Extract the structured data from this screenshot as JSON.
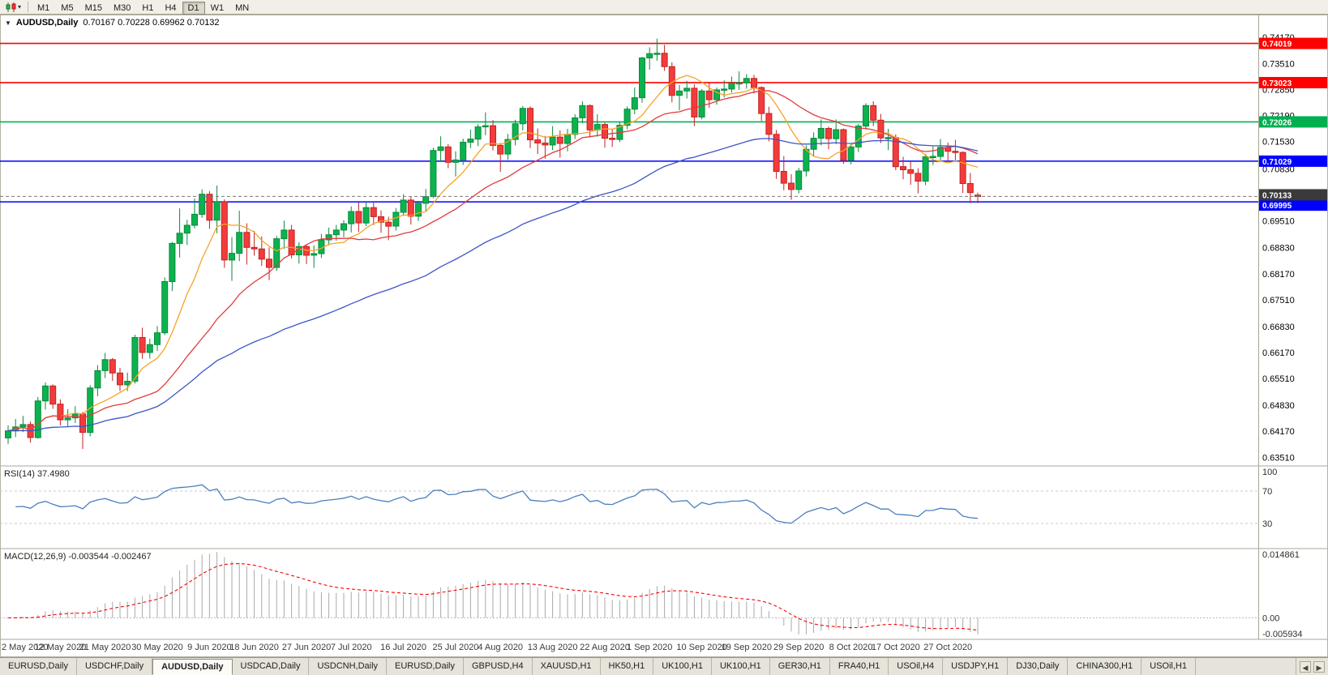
{
  "toolbar": {
    "timeframes": [
      "M1",
      "M5",
      "M15",
      "M30",
      "H1",
      "H4",
      "D1",
      "W1",
      "MN"
    ],
    "active_timeframe": "D1",
    "dropdown_icon": "▾"
  },
  "chart": {
    "collapse_icon": "▼",
    "title": "AUDUSD,Daily",
    "ohlc_text": "0.70167 0.70228 0.69962 0.70132"
  },
  "indicators": {
    "rsi": {
      "label": "RSI(14) 37.4980"
    },
    "macd": {
      "label": "MACD(12,26,9) -0.003544 -0.002467"
    }
  },
  "tabs": {
    "scroll_left": "◀",
    "scroll_right": "▶",
    "items": [
      {
        "label": "EURUSD,Daily",
        "active": false
      },
      {
        "label": "USDCHF,Daily",
        "active": false
      },
      {
        "label": "AUDUSD,Daily",
        "active": true
      },
      {
        "label": "USDCAD,Daily",
        "active": false
      },
      {
        "label": "USDCNH,Daily",
        "active": false
      },
      {
        "label": "EURUSD,Daily",
        "active": false
      },
      {
        "label": "GBPUSD,H4",
        "active": false
      },
      {
        "label": "XAUUSD,H1",
        "active": false
      },
      {
        "label": "HK50,H1",
        "active": false
      },
      {
        "label": "UK100,H1",
        "active": false
      },
      {
        "label": "UK100,H1",
        "active": false
      },
      {
        "label": "GER30,H1",
        "active": false
      },
      {
        "label": "FRA40,H1",
        "active": false
      },
      {
        "label": "USOil,H4",
        "active": false
      },
      {
        "label": "USDJPY,H1",
        "active": false
      },
      {
        "label": "DJ30,Daily",
        "active": false
      },
      {
        "label": "CHINA300,H1",
        "active": false
      },
      {
        "label": "USOil,H1",
        "active": false
      }
    ]
  },
  "chart_data": {
    "type": "candlestick",
    "symbol": "AUDUSD",
    "timeframe": "Daily",
    "current_bar": {
      "open": 0.70167,
      "high": 0.70228,
      "low": 0.69962,
      "close": 0.70132
    },
    "y_axis": {
      "range": [
        0.6331,
        0.7471
      ],
      "ticks": [
        "0.74170",
        "0.73510",
        "0.72850",
        "0.72190",
        "0.71530",
        "0.70830",
        "0.70170",
        "0.69510",
        "0.68830",
        "0.68170",
        "0.67510",
        "0.66830",
        "0.66170",
        "0.65510",
        "0.64830",
        "0.64170",
        "0.63510"
      ]
    },
    "x_axis": {
      "labels": [
        "2 May 2020",
        "12 May 2020",
        "21 May 2020",
        "30 May 2020",
        "9 Jun 2020",
        "18 Jun 2020",
        "27 Jun 2020",
        "7 Jul 2020",
        "16 Jul 2020",
        "25 Jul 2020",
        "4 Aug 2020",
        "13 Aug 2020",
        "22 Aug 2020",
        "1 Sep 2020",
        "10 Sep 2020",
        "19 Sep 2020",
        "29 Sep 2020",
        "8 Oct 2020",
        "17 Oct 2020",
        "27 Oct 2020"
      ]
    },
    "up_color": "#0CB24E",
    "up_border": "#098A3C",
    "down_color": "#F23C3C",
    "down_border": "#C32222",
    "moving_averages": [
      {
        "type": "sma",
        "period": 8,
        "color": "#F7A325"
      },
      {
        "type": "sma",
        "period": 21,
        "color": "#E23B3B"
      },
      {
        "type": "ema",
        "period": 55,
        "color": "#3B55C8"
      }
    ],
    "horizontal_lines": [
      {
        "label": "0.74019",
        "price": 0.74019,
        "color": "#FF0000"
      },
      {
        "label": "0.73023",
        "price": 0.73023,
        "color": "#FF0000"
      },
      {
        "label": "0.72026",
        "price": 0.72026,
        "color": "#00B050"
      },
      {
        "label": "0.71029",
        "price": 0.71029,
        "color": "#0000FF"
      },
      {
        "label": "0.69995",
        "price": 0.69995,
        "color": "#0000FF",
        "tag_dy": 4
      }
    ],
    "bid": {
      "label": "0.70133",
      "price": 0.70133,
      "tag_color": "#3A3A3A",
      "tag_dy": -2
    },
    "rsi": {
      "period": 14,
      "current": 37.498,
      "color": "#4A7EBD",
      "levels": [
        100,
        70,
        30
      ],
      "level_lines": [
        70,
        30
      ]
    },
    "macd": {
      "fast": 12,
      "slow": 26,
      "signal_period": 9,
      "current": -0.003544,
      "current_signal": -0.002467,
      "histogram_color": "#A9A9A9",
      "signal_color": "#FB0000",
      "scale_labels": {
        "top": "0.014861",
        "zero": "0.00",
        "bottom": "-0.005934"
      }
    },
    "candles": [
      [
        0.64,
        0.6432,
        0.6385,
        0.6418
      ],
      [
        0.6418,
        0.6448,
        0.6402,
        0.6428
      ],
      [
        0.6428,
        0.6456,
        0.6415,
        0.6434
      ],
      [
        0.6434,
        0.6442,
        0.6388,
        0.6401
      ],
      [
        0.6401,
        0.6504,
        0.6398,
        0.6494
      ],
      [
        0.6494,
        0.6541,
        0.6472,
        0.6532
      ],
      [
        0.6532,
        0.6536,
        0.6474,
        0.6486
      ],
      [
        0.6486,
        0.6498,
        0.6432,
        0.6446
      ],
      [
        0.6446,
        0.6473,
        0.643,
        0.6451
      ],
      [
        0.6451,
        0.6481,
        0.6438,
        0.6461
      ],
      [
        0.6461,
        0.6466,
        0.6372,
        0.6414
      ],
      [
        0.6414,
        0.6534,
        0.6404,
        0.6527
      ],
      [
        0.6527,
        0.6585,
        0.6506,
        0.6571
      ],
      [
        0.6571,
        0.6616,
        0.6552,
        0.6599
      ],
      [
        0.6599,
        0.6603,
        0.6545,
        0.6565
      ],
      [
        0.6565,
        0.6578,
        0.6519,
        0.6535
      ],
      [
        0.6535,
        0.6566,
        0.6519,
        0.6544
      ],
      [
        0.6544,
        0.6662,
        0.6538,
        0.6655
      ],
      [
        0.6655,
        0.668,
        0.6601,
        0.6617
      ],
      [
        0.6617,
        0.6652,
        0.6602,
        0.6637
      ],
      [
        0.6637,
        0.6684,
        0.6621,
        0.6667
      ],
      [
        0.6667,
        0.6808,
        0.6661,
        0.6797
      ],
      [
        0.6797,
        0.6898,
        0.6773,
        0.6894
      ],
      [
        0.6894,
        0.6983,
        0.6858,
        0.692
      ],
      [
        0.692,
        0.6954,
        0.689,
        0.694
      ],
      [
        0.694,
        0.7008,
        0.6932,
        0.6968
      ],
      [
        0.6968,
        0.7031,
        0.6959,
        0.7019
      ],
      [
        0.7019,
        0.7027,
        0.6931,
        0.6953
      ],
      [
        0.6953,
        0.7041,
        0.692,
        0.7
      ],
      [
        0.7,
        0.7006,
        0.6832,
        0.6852
      ],
      [
        0.6852,
        0.691,
        0.6799,
        0.6869
      ],
      [
        0.6869,
        0.6977,
        0.6849,
        0.6922
      ],
      [
        0.6922,
        0.6945,
        0.684,
        0.6884
      ],
      [
        0.6884,
        0.6926,
        0.6863,
        0.688
      ],
      [
        0.688,
        0.6912,
        0.6837,
        0.6854
      ],
      [
        0.6854,
        0.6884,
        0.6801,
        0.6833
      ],
      [
        0.6833,
        0.6913,
        0.6824,
        0.6906
      ],
      [
        0.6906,
        0.6952,
        0.688,
        0.6928
      ],
      [
        0.6928,
        0.6941,
        0.6856,
        0.6865
      ],
      [
        0.6865,
        0.6897,
        0.6843,
        0.6886
      ],
      [
        0.6886,
        0.6891,
        0.6842,
        0.6864
      ],
      [
        0.6864,
        0.6889,
        0.6832,
        0.6868
      ],
      [
        0.6868,
        0.6918,
        0.6857,
        0.6903
      ],
      [
        0.6903,
        0.6934,
        0.6889,
        0.6916
      ],
      [
        0.6916,
        0.6941,
        0.6901,
        0.6928
      ],
      [
        0.6928,
        0.6953,
        0.691,
        0.6944
      ],
      [
        0.6944,
        0.6988,
        0.6922,
        0.6975
      ],
      [
        0.6975,
        0.6998,
        0.6923,
        0.6946
      ],
      [
        0.6946,
        0.6999,
        0.6938,
        0.6985
      ],
      [
        0.6985,
        0.7,
        0.6941,
        0.6962
      ],
      [
        0.6962,
        0.6978,
        0.6921,
        0.6948
      ],
      [
        0.6948,
        0.6962,
        0.6902,
        0.6938
      ],
      [
        0.6938,
        0.6984,
        0.6927,
        0.6973
      ],
      [
        0.6973,
        0.7019,
        0.6964,
        0.7004
      ],
      [
        0.7004,
        0.7012,
        0.6942,
        0.6963
      ],
      [
        0.6963,
        0.7002,
        0.6951,
        0.6996
      ],
      [
        0.6996,
        0.7032,
        0.6977,
        0.7013
      ],
      [
        0.7013,
        0.7137,
        0.7009,
        0.713
      ],
      [
        0.713,
        0.7166,
        0.7101,
        0.7139
      ],
      [
        0.7139,
        0.7146,
        0.7085,
        0.71
      ],
      [
        0.71,
        0.7128,
        0.7064,
        0.7106
      ],
      [
        0.7106,
        0.716,
        0.7093,
        0.7151
      ],
      [
        0.7151,
        0.7183,
        0.7136,
        0.7159
      ],
      [
        0.7159,
        0.7197,
        0.7141,
        0.719
      ],
      [
        0.719,
        0.7227,
        0.7169,
        0.7193
      ],
      [
        0.7193,
        0.7207,
        0.713,
        0.7143
      ],
      [
        0.7143,
        0.7149,
        0.7076,
        0.7121
      ],
      [
        0.7121,
        0.7172,
        0.7106,
        0.7158
      ],
      [
        0.7158,
        0.7208,
        0.7143,
        0.7198
      ],
      [
        0.7198,
        0.7243,
        0.7181,
        0.7237
      ],
      [
        0.7237,
        0.7242,
        0.7136,
        0.7157
      ],
      [
        0.7157,
        0.7186,
        0.7121,
        0.7149
      ],
      [
        0.7149,
        0.7167,
        0.7109,
        0.7144
      ],
      [
        0.7144,
        0.7192,
        0.7131,
        0.7164
      ],
      [
        0.7164,
        0.7181,
        0.7112,
        0.7148
      ],
      [
        0.7148,
        0.7185,
        0.7128,
        0.7171
      ],
      [
        0.7171,
        0.7222,
        0.7159,
        0.7213
      ],
      [
        0.7213,
        0.7255,
        0.7199,
        0.7244
      ],
      [
        0.7244,
        0.7247,
        0.7163,
        0.7182
      ],
      [
        0.7182,
        0.7222,
        0.7165,
        0.7196
      ],
      [
        0.7196,
        0.7201,
        0.7137,
        0.7161
      ],
      [
        0.7161,
        0.7185,
        0.7139,
        0.7158
      ],
      [
        0.7158,
        0.7203,
        0.7151,
        0.7194
      ],
      [
        0.7194,
        0.7242,
        0.7184,
        0.7235
      ],
      [
        0.7235,
        0.729,
        0.7222,
        0.7264
      ],
      [
        0.7264,
        0.7368,
        0.7251,
        0.7365
      ],
      [
        0.7365,
        0.7392,
        0.7335,
        0.7376
      ],
      [
        0.7376,
        0.7414,
        0.7358,
        0.7377
      ],
      [
        0.7377,
        0.7398,
        0.7332,
        0.7343
      ],
      [
        0.7343,
        0.7354,
        0.7252,
        0.727
      ],
      [
        0.727,
        0.7296,
        0.7232,
        0.7281
      ],
      [
        0.7281,
        0.7307,
        0.7262,
        0.7288
      ],
      [
        0.7288,
        0.7298,
        0.7192,
        0.7215
      ],
      [
        0.7215,
        0.7286,
        0.7209,
        0.7281
      ],
      [
        0.7281,
        0.7302,
        0.7238,
        0.7259
      ],
      [
        0.7259,
        0.729,
        0.7246,
        0.7284
      ],
      [
        0.7284,
        0.7308,
        0.7265,
        0.7286
      ],
      [
        0.7286,
        0.7318,
        0.7277,
        0.7301
      ],
      [
        0.7301,
        0.7331,
        0.7284,
        0.7302
      ],
      [
        0.7302,
        0.7324,
        0.7287,
        0.7313
      ],
      [
        0.7313,
        0.7322,
        0.7275,
        0.729
      ],
      [
        0.729,
        0.7293,
        0.7205,
        0.7224
      ],
      [
        0.7224,
        0.7241,
        0.7153,
        0.7171
      ],
      [
        0.7171,
        0.7182,
        0.7058,
        0.7077
      ],
      [
        0.7077,
        0.7116,
        0.7029,
        0.7047
      ],
      [
        0.7047,
        0.707,
        0.7005,
        0.7031
      ],
      [
        0.7031,
        0.7086,
        0.7021,
        0.7078
      ],
      [
        0.7078,
        0.7143,
        0.7064,
        0.7133
      ],
      [
        0.7133,
        0.7176,
        0.7114,
        0.7161
      ],
      [
        0.7161,
        0.7209,
        0.7143,
        0.7186
      ],
      [
        0.7186,
        0.7191,
        0.7133,
        0.716
      ],
      [
        0.716,
        0.7209,
        0.7146,
        0.7183
      ],
      [
        0.7183,
        0.7186,
        0.7096,
        0.7105
      ],
      [
        0.7105,
        0.7146,
        0.7095,
        0.7139
      ],
      [
        0.7139,
        0.7198,
        0.7126,
        0.7192
      ],
      [
        0.7192,
        0.725,
        0.7183,
        0.7244
      ],
      [
        0.7244,
        0.7255,
        0.7192,
        0.7207
      ],
      [
        0.7207,
        0.7223,
        0.7149,
        0.7162
      ],
      [
        0.7162,
        0.7185,
        0.7131,
        0.7163
      ],
      [
        0.7163,
        0.7171,
        0.708,
        0.7089
      ],
      [
        0.7089,
        0.7114,
        0.7057,
        0.7081
      ],
      [
        0.7081,
        0.7102,
        0.7043,
        0.7072
      ],
      [
        0.7072,
        0.7085,
        0.7021,
        0.7052
      ],
      [
        0.7052,
        0.7121,
        0.7042,
        0.7114
      ],
      [
        0.7114,
        0.714,
        0.7093,
        0.7115
      ],
      [
        0.7115,
        0.7159,
        0.7102,
        0.7138
      ],
      [
        0.7138,
        0.715,
        0.7104,
        0.7128
      ],
      [
        0.7128,
        0.7157,
        0.7103,
        0.7125
      ],
      [
        0.7125,
        0.7128,
        0.7022,
        0.7046
      ],
      [
        0.7046,
        0.7073,
        0.6996,
        0.7023
      ],
      [
        0.70167,
        0.70228,
        0.69962,
        0.70132
      ]
    ]
  }
}
